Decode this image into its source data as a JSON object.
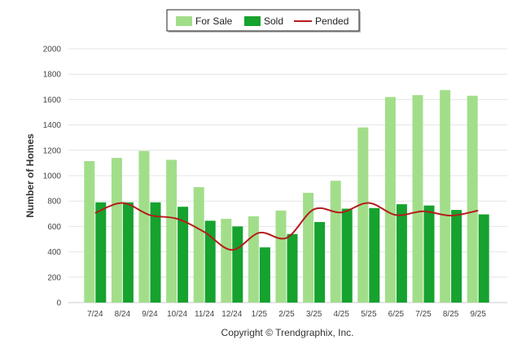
{
  "chart_data": {
    "type": "bar",
    "categories": [
      "7/24",
      "8/24",
      "9/24",
      "10/24",
      "11/24",
      "12/24",
      "1/25",
      "2/25",
      "3/25",
      "4/25",
      "5/25",
      "6/25",
      "7/25",
      "8/25",
      "9/25"
    ],
    "series": [
      {
        "name": "For Sale",
        "type": "bar",
        "color": "#a2de8a",
        "values": [
          1115,
          1140,
          1195,
          1125,
          910,
          660,
          680,
          725,
          865,
          960,
          1380,
          1620,
          1635,
          1675,
          1630
        ]
      },
      {
        "name": "Sold",
        "type": "bar",
        "color": "#16a22e",
        "values": [
          790,
          790,
          790,
          755,
          645,
          600,
          435,
          540,
          635,
          740,
          745,
          775,
          765,
          730,
          695
        ]
      },
      {
        "name": "Pended",
        "type": "line",
        "color": "#b51c1c",
        "values": [
          705,
          785,
          690,
          660,
          555,
          415,
          550,
          510,
          735,
          710,
          785,
          690,
          720,
          685,
          725
        ]
      }
    ],
    "ylabel": "Number of Homes",
    "xlabel": "",
    "ylim": [
      0,
      2000
    ],
    "yticks": [
      0,
      200,
      400,
      600,
      800,
      1000,
      1200,
      1400,
      1600,
      1800,
      2000
    ],
    "grid": true,
    "legend_position": "top-center",
    "credit": "Copyright © Trendgraphix, Inc."
  }
}
